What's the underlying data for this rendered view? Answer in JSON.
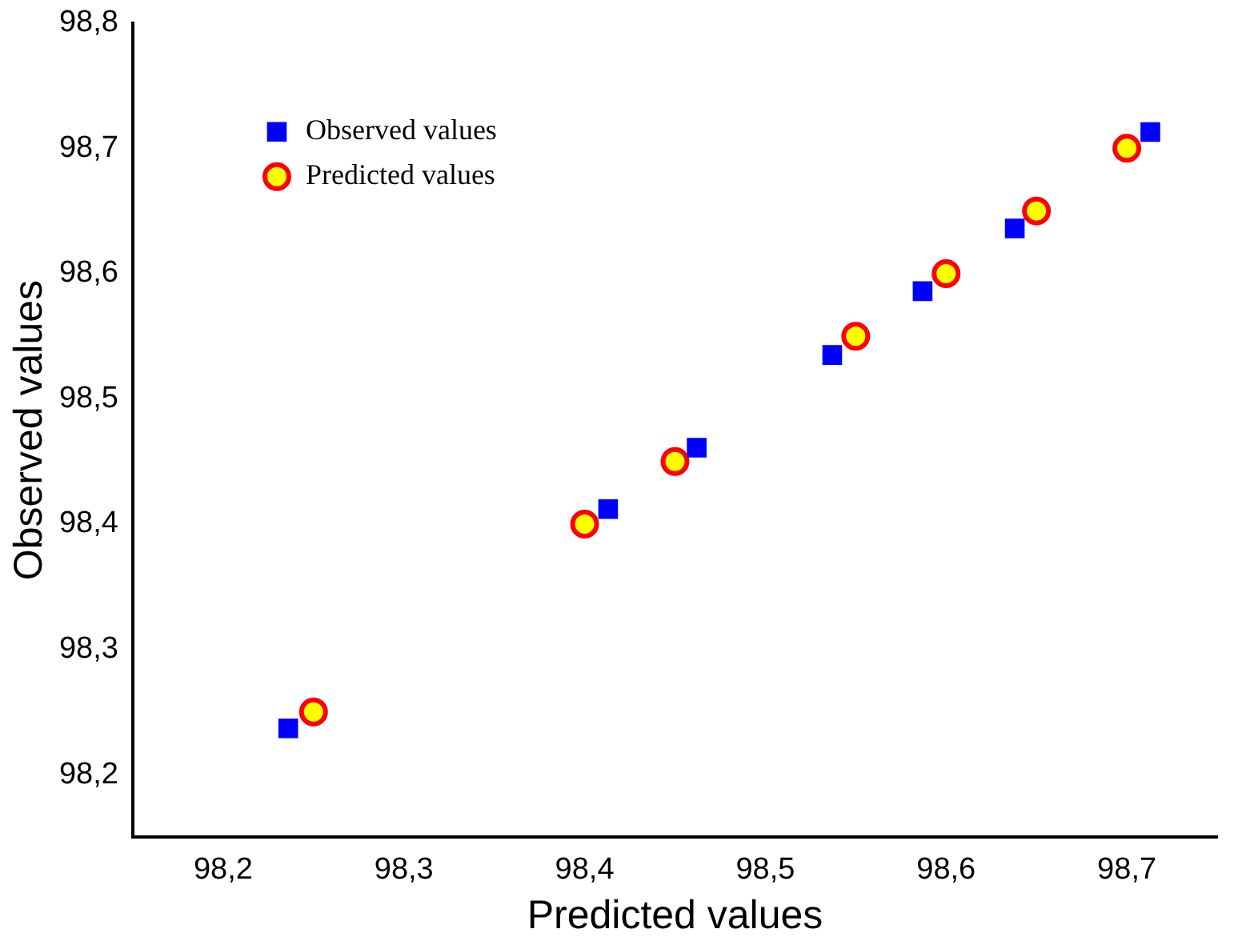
{
  "chart_data": {
    "type": "scatter",
    "xlabel": "Predicted values",
    "ylabel": "Observed values",
    "xlim": [
      98.15,
      98.75
    ],
    "ylim": [
      98.15,
      98.8
    ],
    "xticks": [
      {
        "value": 98.2,
        "label": "98,2"
      },
      {
        "value": 98.3,
        "label": "98,3"
      },
      {
        "value": 98.4,
        "label": "98,4"
      },
      {
        "value": 98.5,
        "label": "98,5"
      },
      {
        "value": 98.6,
        "label": "98,6"
      },
      {
        "value": 98.7,
        "label": "98,7"
      }
    ],
    "yticks": [
      {
        "value": 98.2,
        "label": "98,2"
      },
      {
        "value": 98.3,
        "label": "98,3"
      },
      {
        "value": 98.4,
        "label": "98,4"
      },
      {
        "value": 98.5,
        "label": "98,5"
      },
      {
        "value": 98.6,
        "label": "98,6"
      },
      {
        "value": 98.7,
        "label": "98,7"
      },
      {
        "value": 98.8,
        "label": "98,8"
      }
    ],
    "grid": false,
    "legend": "top left",
    "series": [
      {
        "name": "Observed values",
        "color": "#0000ff",
        "marker": "square",
        "x": [
          98.236,
          98.413,
          98.462,
          98.537,
          98.587,
          98.638,
          98.713
        ],
        "values": [
          98.237,
          98.412,
          98.461,
          98.535,
          98.586,
          98.636,
          98.713
        ]
      },
      {
        "name": "Predicted values",
        "color": "#ffff00",
        "marker": "circle",
        "x": [
          98.25,
          98.4,
          98.45,
          98.55,
          98.6,
          98.65,
          98.7
        ],
        "values": [
          98.25,
          98.4,
          98.45,
          98.55,
          98.6,
          98.65,
          98.7
        ]
      }
    ]
  }
}
